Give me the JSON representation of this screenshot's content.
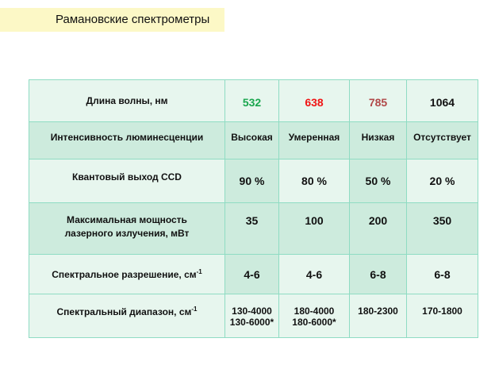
{
  "title": "Рамановские спектрометры",
  "colors": {
    "w532": "#1aa64e",
    "w638": "#f01414",
    "w785": "#b04848",
    "w1064": "#111111"
  },
  "rows": [
    {
      "label": "Длина волны, нм",
      "cells": [
        "532",
        "638",
        "785",
        "1064"
      ]
    },
    {
      "label": "Интенсивность люминесценции",
      "cells": [
        "Высокая",
        "Умеренная",
        "Низкая",
        "Отсутствует"
      ]
    },
    {
      "label": "Квантовый выход CCD",
      "cells": [
        "90 %",
        "80 %",
        "50 %",
        "20 %"
      ]
    },
    {
      "label_line1": "Максимальная мощность",
      "label_line2": "лазерного излучения, мВт",
      "cells": [
        "35",
        "100",
        "200",
        "350"
      ]
    },
    {
      "label": "Спектральное разрешение, см",
      "label_sup": "-1",
      "cells": [
        "4-6",
        "4-6",
        "6-8",
        "6-8"
      ]
    },
    {
      "label": "Спектральный диапазон, см",
      "label_sup": "-1",
      "cells": [
        [
          "130-4000",
          "130-6000*"
        ],
        [
          "180-4000",
          "180-6000*"
        ],
        [
          "180-2300"
        ],
        [
          "170-1800"
        ]
      ]
    }
  ]
}
